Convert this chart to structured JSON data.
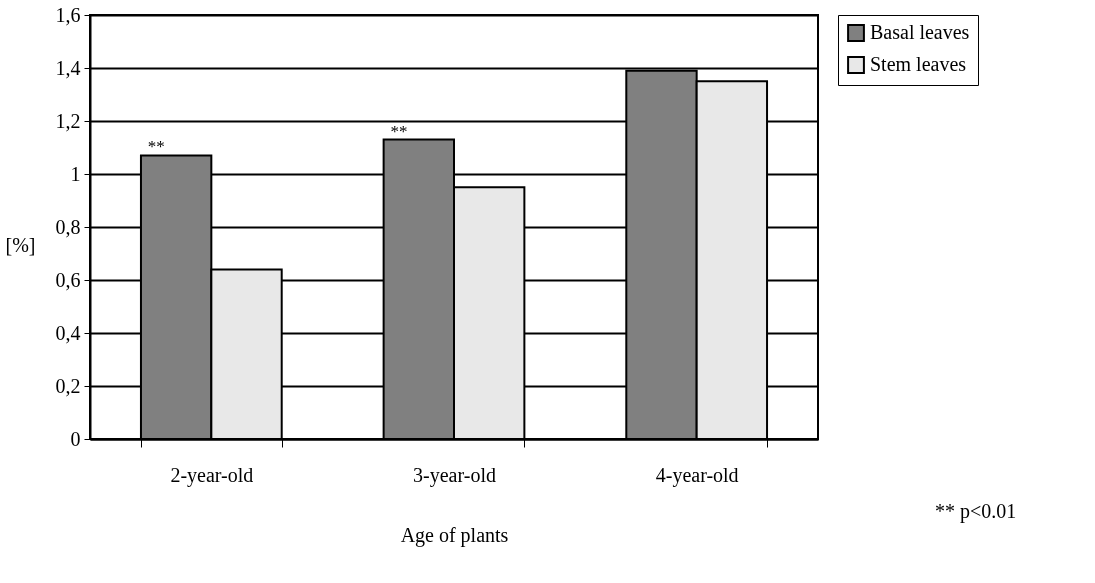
{
  "chart_data": {
    "type": "bar",
    "xlabel": "Age of plants",
    "ylabel": "[%]",
    "categories": [
      "2-year-old",
      "3-year-old",
      "4-year-old"
    ],
    "series": [
      {
        "name": "Basal leaves",
        "color": "#808080",
        "values": [
          1.07,
          1.13,
          1.39
        ]
      },
      {
        "name": "Stem leaves",
        "color": "#e8e8e8",
        "values": [
          0.64,
          0.95,
          1.35
        ]
      }
    ],
    "ylim": [
      0,
      1.6
    ],
    "yticks": [
      {
        "value": 0,
        "label": "0"
      },
      {
        "value": 0.2,
        "label": "0,2"
      },
      {
        "value": 0.4,
        "label": "0,4"
      },
      {
        "value": 0.6,
        "label": "0,6"
      },
      {
        "value": 0.8,
        "label": "0,8"
      },
      {
        "value": 1,
        "label": "1"
      },
      {
        "value": 1.2,
        "label": "1,2"
      },
      {
        "value": 1.4,
        "label": "1,4"
      },
      {
        "value": 1.6,
        "label": "1,6"
      }
    ],
    "grid": "y",
    "legend": "right",
    "annotations": [
      {
        "text": "**",
        "x": "2-year-old",
        "y": 1.07
      },
      {
        "text": "**",
        "x": "3-year-old",
        "y": 1.13
      },
      "** p<0.01"
    ]
  }
}
